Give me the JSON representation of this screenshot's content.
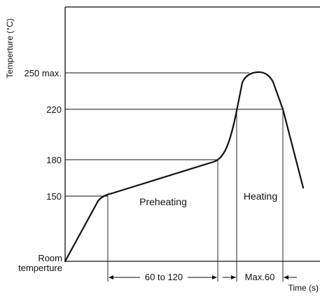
{
  "chart_data": {
    "type": "line",
    "title": "",
    "ylabel": "Temperture (°C)",
    "xlabel": "Time (s)",
    "y_ticks": [
      {
        "label": "250 max.",
        "value": 250
      },
      {
        "label": "220",
        "value": 220
      },
      {
        "label": "180",
        "value": 180
      },
      {
        "label": "150",
        "value": 150
      }
    ],
    "y_start_label_line1": "Room",
    "y_start_label_line2": "temperture",
    "regions": [
      {
        "label": "Preheating"
      },
      {
        "label": "Heating"
      }
    ],
    "intervals": [
      {
        "label": "60 to 120"
      },
      {
        "label": "Max.60"
      }
    ],
    "grid": false,
    "colors": {
      "line": "#111111",
      "background": "#ffffff"
    }
  }
}
